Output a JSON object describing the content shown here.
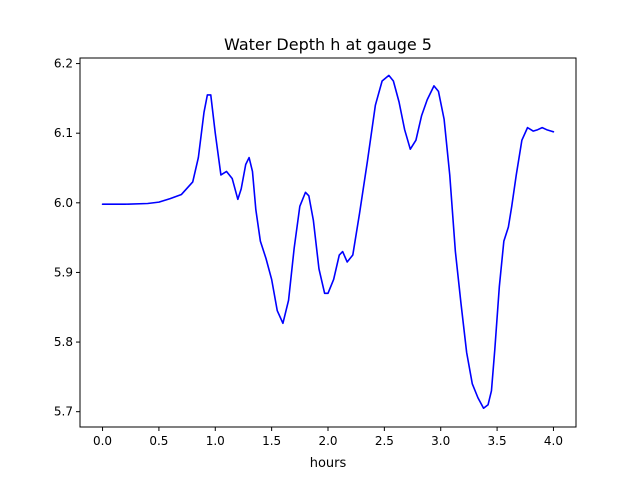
{
  "chart_data": {
    "type": "line",
    "title": "Water Depth h at gauge 5",
    "xlabel": "hours",
    "ylabel": "",
    "xlim": [
      -0.2,
      4.2
    ],
    "ylim": [
      5.678,
      6.208
    ],
    "x_ticks": [
      0.0,
      0.5,
      1.0,
      1.5,
      2.0,
      2.5,
      3.0,
      3.5,
      4.0
    ],
    "x_tick_labels": [
      "0.0",
      "0.5",
      "1.0",
      "1.5",
      "2.0",
      "2.5",
      "3.0",
      "3.5",
      "4.0"
    ],
    "y_ticks": [
      5.7,
      5.8,
      5.9,
      6.0,
      6.1,
      6.2
    ],
    "y_tick_labels": [
      "5.7",
      "5.8",
      "5.9",
      "6.0",
      "6.1",
      "6.2"
    ],
    "grid": false,
    "series": [
      {
        "color": "#0000ff",
        "x": [
          0.0,
          0.2,
          0.4,
          0.5,
          0.6,
          0.7,
          0.8,
          0.85,
          0.9,
          0.93,
          0.96,
          1.0,
          1.05,
          1.1,
          1.15,
          1.2,
          1.23,
          1.27,
          1.3,
          1.33,
          1.36,
          1.4,
          1.45,
          1.5,
          1.55,
          1.6,
          1.65,
          1.7,
          1.75,
          1.8,
          1.83,
          1.87,
          1.92,
          1.97,
          2.0,
          2.05,
          2.1,
          2.13,
          2.17,
          2.22,
          2.28,
          2.35,
          2.42,
          2.48,
          2.54,
          2.58,
          2.63,
          2.68,
          2.73,
          2.78,
          2.83,
          2.88,
          2.94,
          2.98,
          3.03,
          3.08,
          3.13,
          3.18,
          3.23,
          3.28,
          3.33,
          3.38,
          3.42,
          3.45,
          3.48,
          3.52,
          3.56,
          3.6,
          3.63,
          3.67,
          3.72,
          3.77,
          3.82,
          3.86,
          3.9,
          3.94,
          3.98,
          4.0
        ],
        "y": [
          5.998,
          5.998,
          5.999,
          6.001,
          6.006,
          6.012,
          6.03,
          6.065,
          6.13,
          6.155,
          6.155,
          6.1,
          6.04,
          6.045,
          6.035,
          6.005,
          6.02,
          6.055,
          6.065,
          6.045,
          5.99,
          5.945,
          5.92,
          5.89,
          5.845,
          5.827,
          5.86,
          5.935,
          5.995,
          6.015,
          6.01,
          5.975,
          5.905,
          5.87,
          5.87,
          5.89,
          5.925,
          5.93,
          5.915,
          5.925,
          5.985,
          6.06,
          6.14,
          6.175,
          6.183,
          6.175,
          6.145,
          6.105,
          6.077,
          6.09,
          6.125,
          6.148,
          6.168,
          6.16,
          6.12,
          6.04,
          5.93,
          5.855,
          5.785,
          5.74,
          5.72,
          5.705,
          5.71,
          5.73,
          5.79,
          5.88,
          5.945,
          5.965,
          5.995,
          6.04,
          6.09,
          6.108,
          6.103,
          6.105,
          6.108,
          6.105,
          6.103,
          6.102
        ]
      }
    ]
  }
}
